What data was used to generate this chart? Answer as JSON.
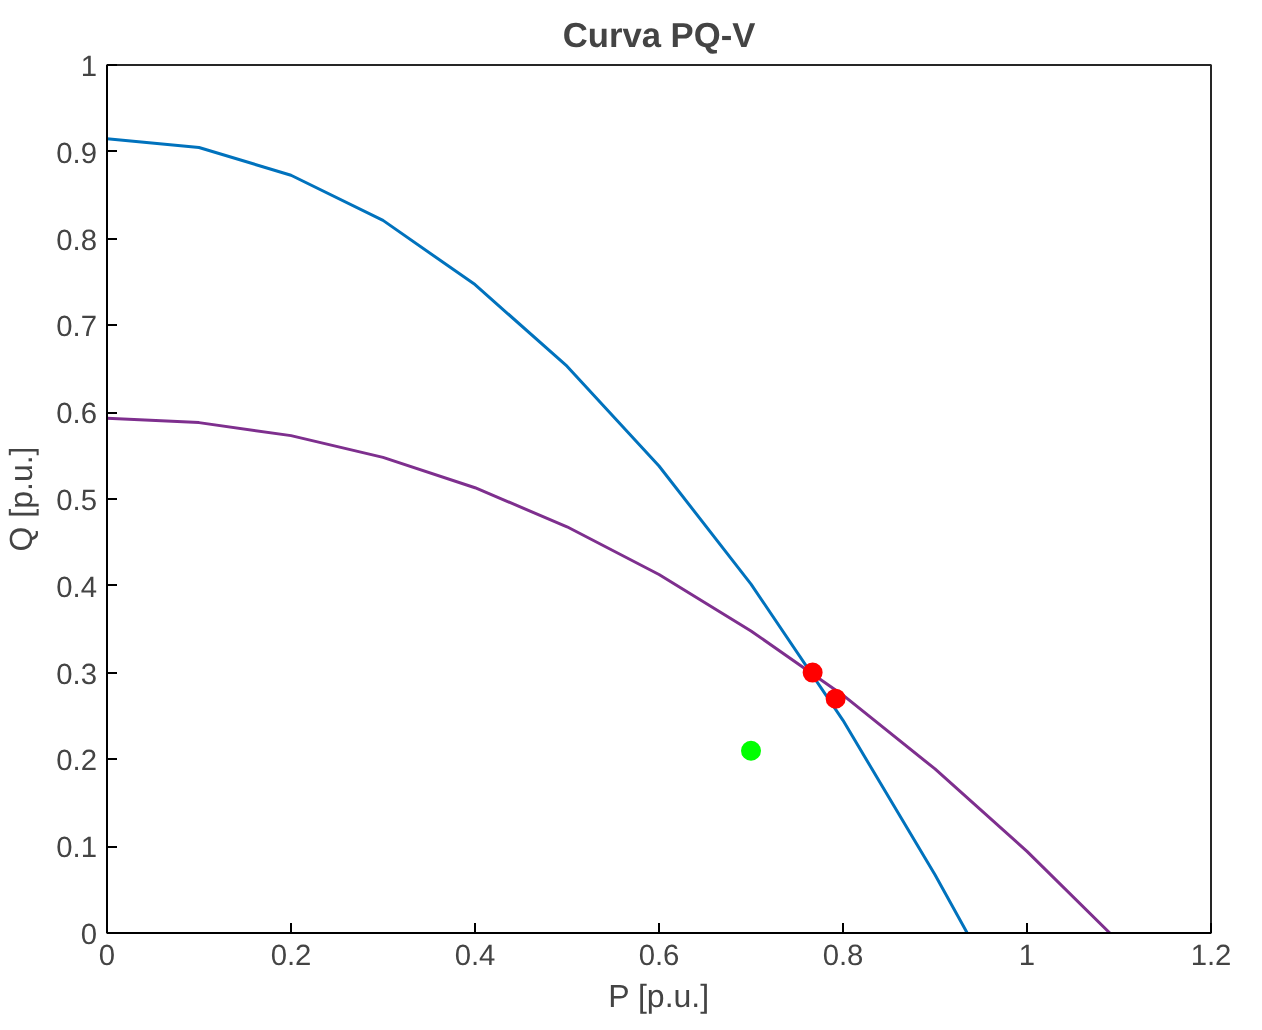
{
  "chart_data": {
    "type": "line",
    "title": "Curva PQ-V",
    "xlabel": "P [p.u.]",
    "ylabel": "Q [p.u.]",
    "xlim": [
      0,
      1.2
    ],
    "ylim": [
      0,
      1
    ],
    "xticks": [
      0,
      0.2,
      0.4,
      0.6,
      0.8,
      1,
      1.2
    ],
    "yticks": [
      0,
      0.1,
      0.2,
      0.3,
      0.4,
      0.5,
      0.6,
      0.7,
      0.8,
      0.9,
      1
    ],
    "grid": false,
    "series": [
      {
        "color": "#0072bd",
        "x": [
          0,
          0.1,
          0.2,
          0.3,
          0.4,
          0.5,
          0.6,
          0.7,
          0.8,
          0.9,
          0.935
        ],
        "values": [
          0.915,
          0.905,
          0.873,
          0.821,
          0.747,
          0.653,
          0.538,
          0.402,
          0.245,
          0.067,
          0
        ]
      },
      {
        "color": "#7e2f8e",
        "x": [
          0,
          0.1,
          0.2,
          0.3,
          0.4,
          0.5,
          0.6,
          0.7,
          0.8,
          0.9,
          1.0,
          1.09
        ],
        "values": [
          0.593,
          0.588,
          0.573,
          0.548,
          0.513,
          0.468,
          0.413,
          0.348,
          0.274,
          0.189,
          0.094,
          0
        ]
      },
      {
        "type": "scatter",
        "color": "#ff0000",
        "marker": "circle",
        "x": [
          0.767,
          0.792
        ],
        "values": [
          0.3,
          0.27
        ]
      },
      {
        "type": "scatter",
        "color": "#00ff00",
        "marker": "circle",
        "x": [
          0.7
        ],
        "values": [
          0.21
        ]
      }
    ]
  }
}
